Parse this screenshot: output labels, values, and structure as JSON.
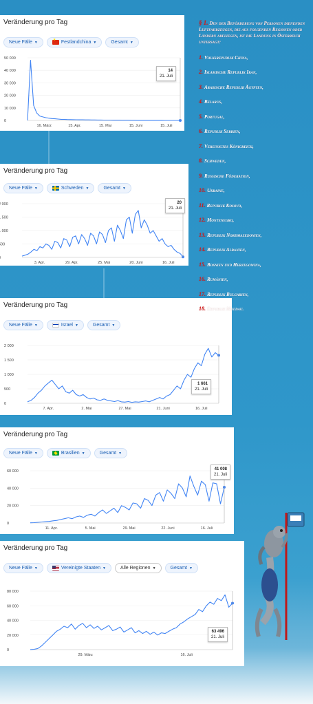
{
  "panels": [
    {
      "title": "Veränderung pro Tag",
      "chips": [
        {
          "label": "Neue Fälle",
          "flag": null,
          "style": "blue"
        },
        {
          "label": "Festlandchina",
          "flag": "china-flag",
          "style": "blue"
        },
        {
          "label": "Gesamt",
          "flag": null,
          "style": "blue"
        }
      ],
      "tooltip": {
        "value": "14",
        "date": "21. Juli"
      }
    },
    {
      "title": "Veränderung pro Tag",
      "chips": [
        {
          "label": "Neue Fälle",
          "flag": null,
          "style": "blue"
        },
        {
          "label": "Schweden",
          "flag": "sweden-flag",
          "style": "blue"
        },
        {
          "label": "Gesamt",
          "flag": null,
          "style": "blue"
        }
      ],
      "tooltip": {
        "value": "20",
        "date": "21. Juli"
      }
    },
    {
      "title": "Veränderung pro Tag",
      "chips": [
        {
          "label": "Neue Fälle",
          "flag": null,
          "style": "blue"
        },
        {
          "label": "Israel",
          "flag": "israel-flag",
          "style": "blue"
        },
        {
          "label": "Gesamt",
          "flag": null,
          "style": "blue"
        }
      ],
      "tooltip": {
        "value": "1 661",
        "date": "21. Juli"
      }
    },
    {
      "title": "Veränderung pro Tag",
      "chips": [
        {
          "label": "Neue Fälle",
          "flag": null,
          "style": "blue"
        },
        {
          "label": "Brasilien",
          "flag": "brazil-flag",
          "style": "blue"
        },
        {
          "label": "Gesamt",
          "flag": null,
          "style": "blue"
        }
      ],
      "tooltip": {
        "value": "41 008",
        "date": "21. Juli"
      }
    },
    {
      "title": "Veränderung pro Tag",
      "chips": [
        {
          "label": "Neue Fälle",
          "flag": null,
          "style": "blue"
        },
        {
          "label": "Vereinigte Staaten",
          "flag": "usa-flag",
          "style": "blue"
        },
        {
          "label": "Alle Regionen",
          "flag": null,
          "style": "neutral"
        },
        {
          "label": "Gesamt",
          "flag": null,
          "style": "blue"
        }
      ],
      "tooltip": {
        "value": "63 496",
        "date": "21. Juli"
      }
    }
  ],
  "chart_data": [
    {
      "type": "line",
      "series": [
        {
          "name": "",
          "color": "#4285f4",
          "values": [
            0,
            48000,
            12000,
            6000,
            3500,
            2800,
            2200,
            1800,
            1500,
            1300,
            1100,
            900,
            800,
            700,
            650,
            600,
            550,
            500,
            480,
            450,
            420,
            400,
            380,
            350,
            320,
            300,
            280,
            260,
            240,
            220,
            200,
            180,
            160,
            140,
            120,
            100,
            80,
            60,
            50,
            40,
            40,
            35,
            30,
            30,
            28,
            25,
            20,
            20,
            18,
            15,
            14
          ]
        }
      ],
      "y_ticks": [
        "0",
        "10 000",
        "20 000",
        "30 000",
        "40 000",
        "50 000"
      ],
      "ylim": [
        0,
        50000
      ],
      "x_ticks": [
        "16. März",
        "15. Apr.",
        "15. Mai",
        "15. Juni",
        "15. Juli"
      ]
    },
    {
      "type": "line",
      "series": [
        {
          "name": "",
          "color": "#4285f4",
          "values": [
            50,
            80,
            120,
            200,
            300,
            250,
            400,
            350,
            500,
            450,
            300,
            600,
            550,
            350,
            700,
            650,
            400,
            750,
            800,
            500,
            850,
            700,
            450,
            900,
            800,
            500,
            950,
            850,
            550,
            1000,
            1100,
            600,
            1200,
            1000,
            700,
            1400,
            1500,
            900,
            1600,
            1750,
            1100,
            1400,
            1200,
            900,
            1000,
            800,
            600,
            700,
            500,
            400,
            450,
            300,
            200,
            150,
            20
          ]
        }
      ],
      "y_ticks": [
        "0",
        "500",
        "1 000",
        "1 500",
        "2 000"
      ],
      "ylim": [
        0,
        2000
      ],
      "x_ticks": [
        "3. Apr.",
        "29. Apr.",
        "25. Mai",
        "20. Juni",
        "16. Juli"
      ]
    },
    {
      "type": "line",
      "series": [
        {
          "name": "",
          "color": "#4285f4",
          "values": [
            50,
            100,
            200,
            350,
            450,
            600,
            700,
            800,
            650,
            500,
            600,
            400,
            350,
            450,
            300,
            250,
            300,
            200,
            150,
            180,
            120,
            100,
            150,
            100,
            80,
            60,
            90,
            50,
            40,
            60,
            30,
            50,
            40,
            60,
            80,
            50,
            100,
            150,
            200,
            150,
            250,
            300,
            450,
            600,
            500,
            800,
            1000,
            900,
            1200,
            1400,
            1300,
            1700,
            1900,
            1600,
            1750,
            1661
          ]
        }
      ],
      "y_ticks": [
        "0",
        "500",
        "1 000",
        "1 500",
        "2 000"
      ],
      "ylim": [
        0,
        2000
      ],
      "x_ticks": [
        "7. Apr.",
        "2. Mai",
        "27. Mai",
        "21. Juni",
        "16. Juli"
      ]
    },
    {
      "type": "line",
      "series": [
        {
          "name": "",
          "color": "#4285f4",
          "values": [
            200,
            400,
            800,
            1200,
            1500,
            1800,
            2500,
            3000,
            4000,
            5000,
            6000,
            5000,
            7000,
            8000,
            6500,
            9000,
            10000,
            8000,
            12000,
            15000,
            11000,
            14000,
            17000,
            12000,
            20000,
            18000,
            15000,
            23000,
            22000,
            17000,
            28000,
            26000,
            20000,
            32000,
            35000,
            25000,
            38000,
            34000,
            28000,
            45000,
            40000,
            30000,
            54000,
            42000,
            32000,
            48000,
            44000,
            25000,
            46000,
            45000,
            22000,
            41008
          ]
        }
      ],
      "y_ticks": [
        "0",
        "20 000",
        "40 000",
        "60 000"
      ],
      "ylim": [
        0,
        60000
      ],
      "x_ticks": [
        "11. Apr.",
        "5. Mai",
        "29. Mai",
        "22. Juni",
        "16. Juli"
      ]
    },
    {
      "type": "line",
      "series": [
        {
          "name": "",
          "color": "#4285f4",
          "values": [
            100,
            500,
            1500,
            5000,
            10000,
            15000,
            20000,
            25000,
            28000,
            32000,
            30000,
            35000,
            28000,
            33000,
            36000,
            30000,
            34000,
            29000,
            32000,
            27000,
            30000,
            33000,
            26000,
            28000,
            31000,
            24000,
            27000,
            30000,
            23000,
            26000,
            22000,
            25000,
            21000,
            24000,
            20000,
            23000,
            22000,
            25000,
            28000,
            30000,
            35000,
            38000,
            42000,
            45000,
            48000,
            55000,
            52000,
            60000,
            65000,
            62000,
            70000,
            67000,
            75000,
            58000,
            63496
          ]
        }
      ],
      "y_ticks": [
        "0",
        "20 000",
        "40 000",
        "60 000",
        "80 000"
      ],
      "ylim": [
        0,
        80000
      ],
      "x_ticks": [
        "29. März",
        "16. Juli"
      ]
    }
  ],
  "law": {
    "heading_para": "§ 1.",
    "heading_text": "Den der Beförderung von Personen dienenden Luftfahrzeugen, die aus folgenden Regionen oder Ländern abfliegen, ist die Landung in Österreich untersagt:",
    "items": [
      {
        "num": "1.",
        "text": "Volksrepublik China,"
      },
      {
        "num": "2.",
        "text": "Islamische Republik Iran,"
      },
      {
        "num": "3.",
        "text": "Arabische Republik Ägypten,"
      },
      {
        "num": "4.",
        "text": "Belarus,"
      },
      {
        "num": "5.",
        "text": "Portugal,"
      },
      {
        "num": "6.",
        "text": "Republik Serbien,"
      },
      {
        "num": "7.",
        "text": "Vereinigtes Königreich,"
      },
      {
        "num": "8.",
        "text": "Schweden,"
      },
      {
        "num": "9.",
        "text": "Russische Föderation,"
      },
      {
        "num": "10.",
        "text": "Ukraine,"
      },
      {
        "num": "11.",
        "text": "Republik Kosovo,"
      },
      {
        "num": "12.",
        "text": "Montenegro,"
      },
      {
        "num": "13.",
        "text": "Republik Nordmazedonien,"
      },
      {
        "num": "14.",
        "text": "Republik Albanien,"
      },
      {
        "num": "15.",
        "text": "Bosnien und Herzegowina,"
      },
      {
        "num": "16.",
        "text": "Rumänien,"
      },
      {
        "num": "17.",
        "text": "Republik Bulgarien,"
      },
      {
        "num": "18.",
        "text": "Republik Moldau."
      }
    ]
  },
  "colors": {
    "line": "#4285f4",
    "accent_red": "#d41b1b",
    "background": "#2a8fc4"
  }
}
